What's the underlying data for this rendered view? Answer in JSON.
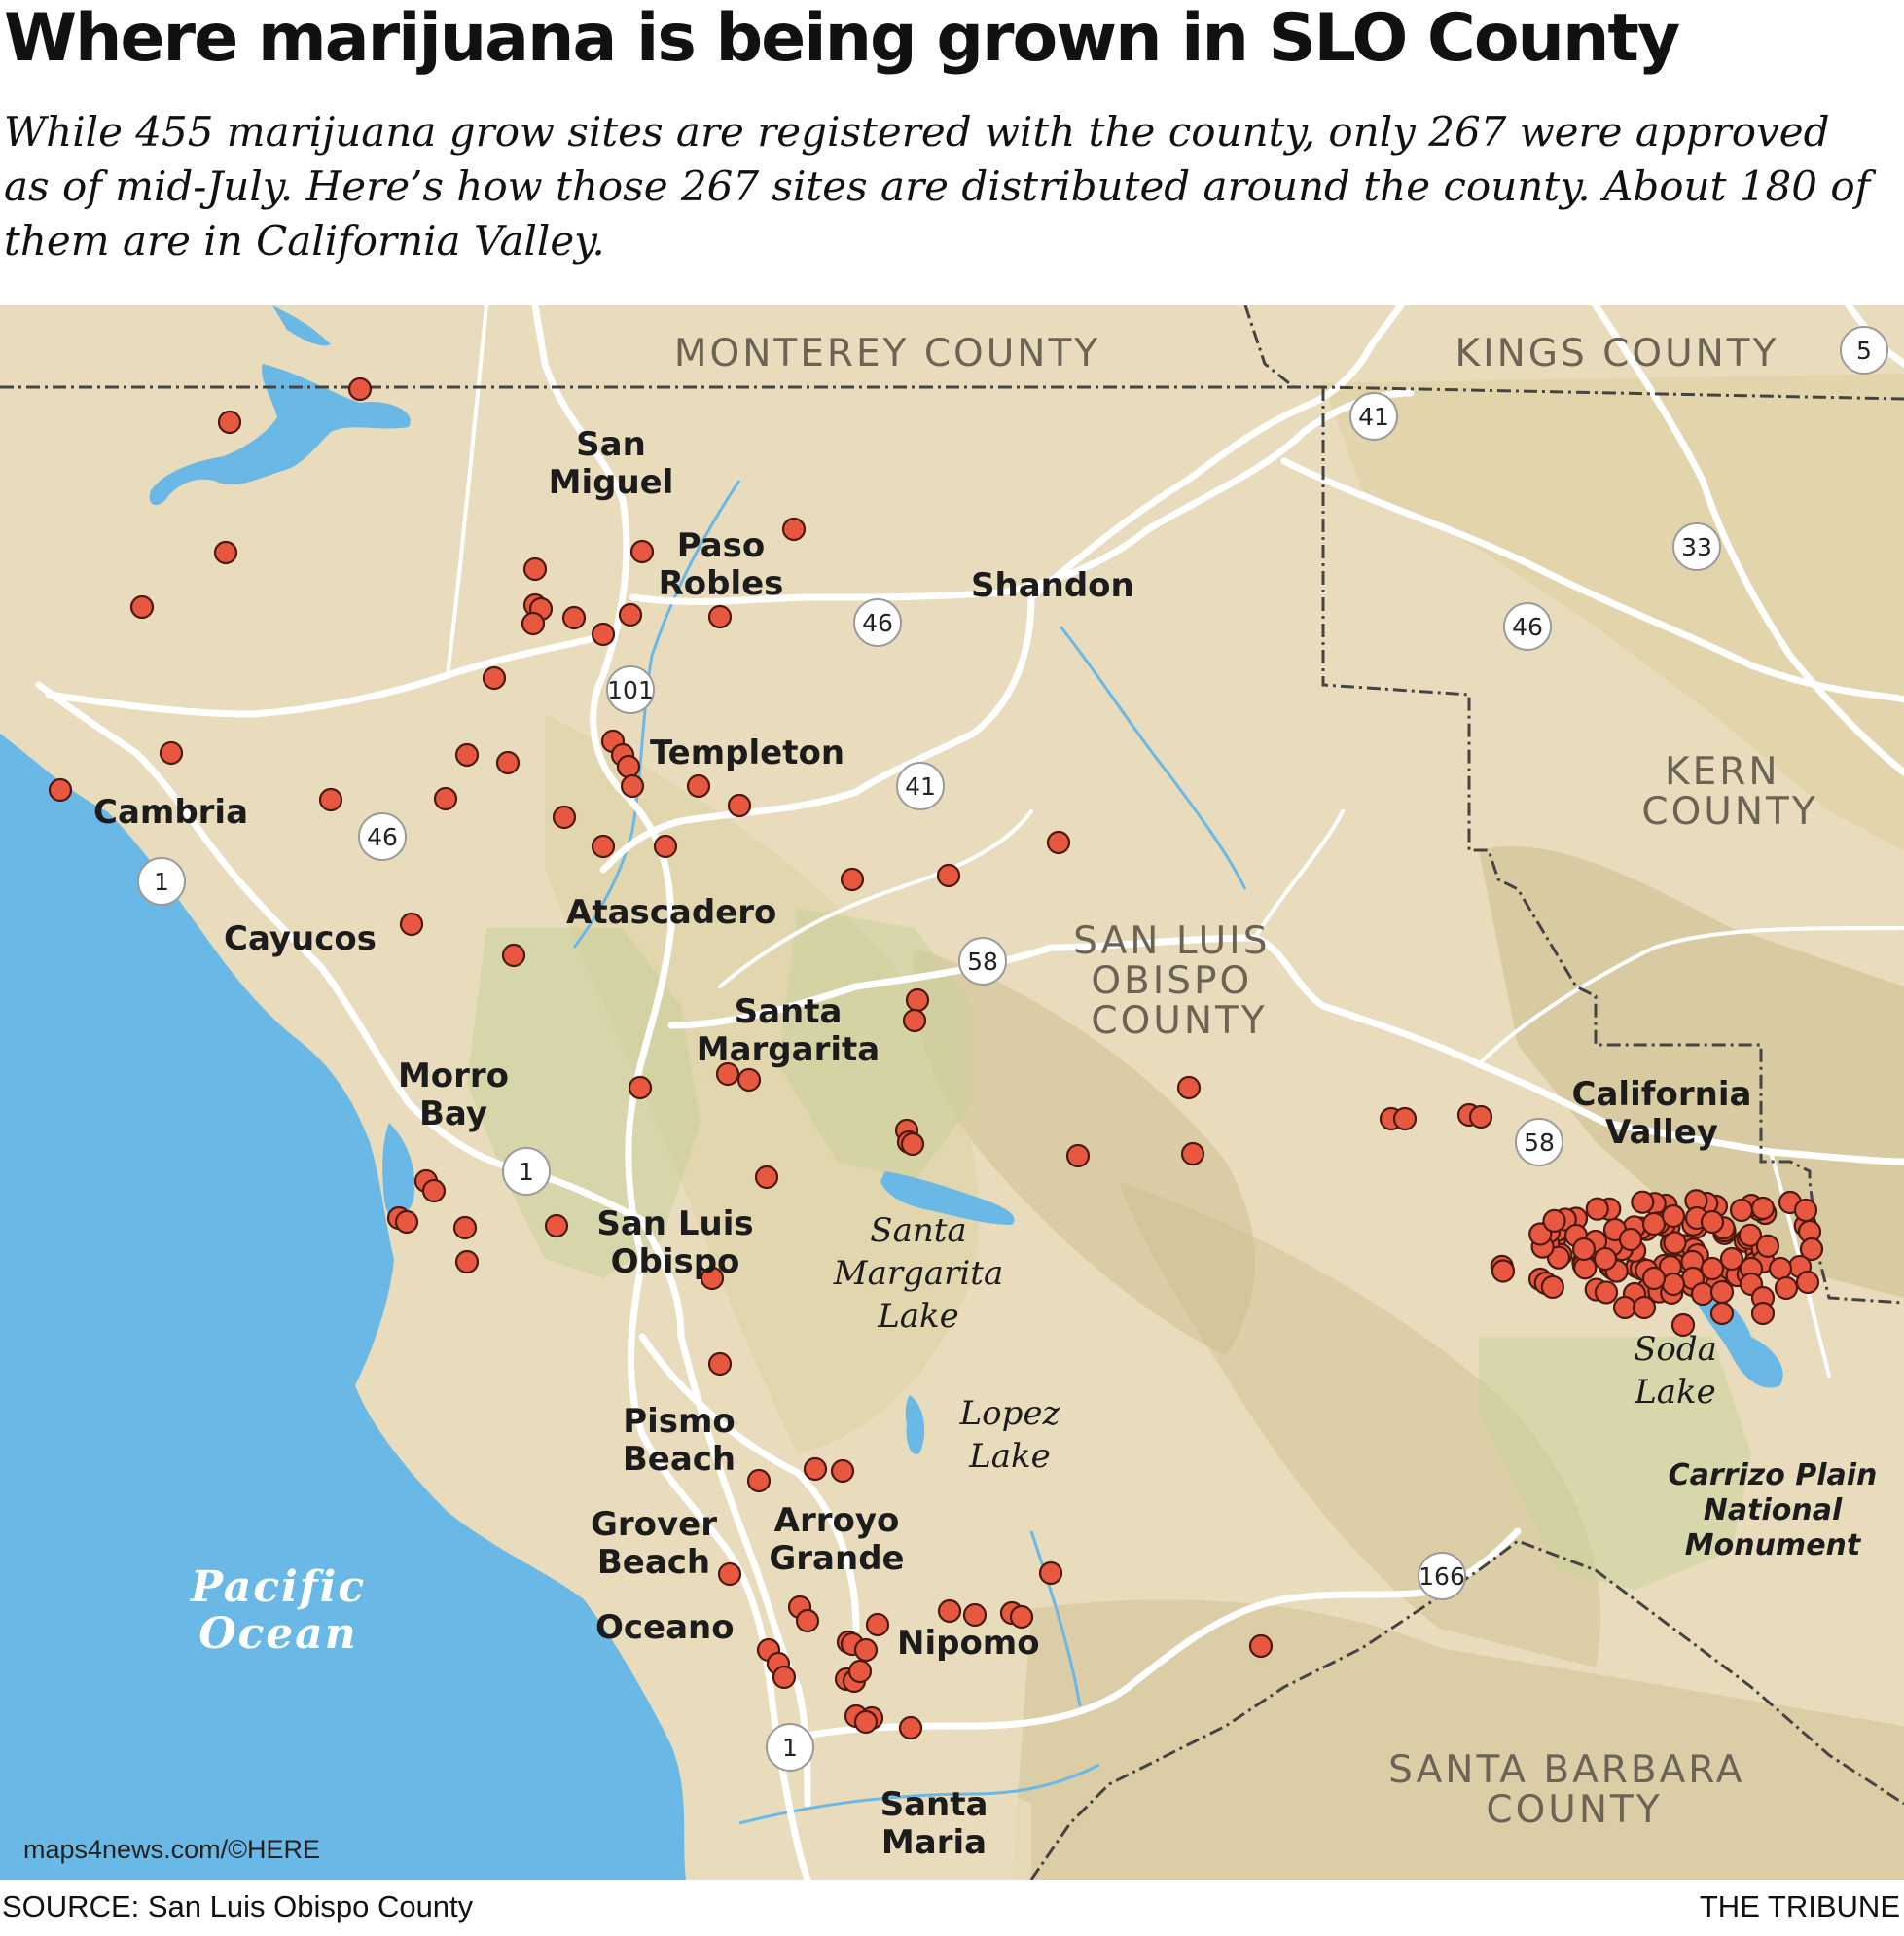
{
  "header": {
    "title": "Where marijuana is being grown in SLO County",
    "dek": "While 455 marijuana grow sites are registered with the county, only 267 were approved as of mid-July. Here’s how those 267 sites are distributed around the county. About 180 of them are in California Valley."
  },
  "map": {
    "attribution": "maps4news.com/©HERE",
    "colors": {
      "land": "#e9dcbc",
      "foothills": "#dccf9f",
      "mountains": "#cdbf8f",
      "parkland": "#c8cf9a",
      "water": "#6ab8e6",
      "roads": "#ffffff",
      "county_line": "#444444",
      "grow_site": "#e8573f",
      "grow_site_outline": "#4a1a10"
    },
    "counties": [
      {
        "id": "monterey",
        "label": "MONTEREY COUNTY"
      },
      {
        "id": "kings",
        "label": "KINGS COUNTY"
      },
      {
        "id": "kern",
        "label": [
          "KERN",
          "COUNTY"
        ]
      },
      {
        "id": "slo",
        "label": [
          "SAN LUIS",
          "OBISPO",
          "COUNTY"
        ]
      },
      {
        "id": "santa-barbara",
        "label": [
          "SANTA BARBARA",
          "COUNTY"
        ]
      }
    ],
    "places": [
      {
        "id": "san-miguel",
        "label": [
          "San",
          "Miguel"
        ]
      },
      {
        "id": "paso-robles",
        "label": [
          "Paso",
          "Robles"
        ]
      },
      {
        "id": "shandon",
        "label": [
          "Shandon"
        ]
      },
      {
        "id": "templeton",
        "label": [
          "Templeton"
        ]
      },
      {
        "id": "cambria",
        "label": [
          "Cambria"
        ]
      },
      {
        "id": "atascadero",
        "label": [
          "Atascadero"
        ]
      },
      {
        "id": "cayucos",
        "label": [
          "Cayucos"
        ]
      },
      {
        "id": "santa-margarita",
        "label": [
          "Santa",
          "Margarita"
        ]
      },
      {
        "id": "morro-bay",
        "label": [
          "Morro",
          "Bay"
        ]
      },
      {
        "id": "california-valley",
        "label": [
          "California",
          "Valley"
        ]
      },
      {
        "id": "san-luis-obispo",
        "label": [
          "San Luis",
          "Obispo"
        ]
      },
      {
        "id": "pismo-beach",
        "label": [
          "Pismo",
          "Beach"
        ]
      },
      {
        "id": "grover-beach",
        "label": [
          "Grover",
          "Beach"
        ]
      },
      {
        "id": "arroyo-grande",
        "label": [
          "Arroyo",
          "Grande"
        ]
      },
      {
        "id": "oceano",
        "label": [
          "Oceano"
        ]
      },
      {
        "id": "nipomo",
        "label": [
          "Nipomo"
        ]
      },
      {
        "id": "santa-maria",
        "label": [
          "Santa",
          "Maria"
        ]
      }
    ],
    "features": [
      {
        "id": "santa-margarita-lake",
        "label": [
          "Santa",
          "Margarita",
          "Lake"
        ]
      },
      {
        "id": "lopez-lake",
        "label": [
          "Lopez",
          "Lake"
        ]
      },
      {
        "id": "soda-lake",
        "label": [
          "Soda",
          "Lake"
        ]
      },
      {
        "id": "carrizo",
        "label": [
          "Carrizo Plain",
          "National",
          "Monument"
        ]
      },
      {
        "id": "pacific-ocean",
        "label": [
          "Pacific",
          "Ocean"
        ]
      }
    ],
    "highways": [
      "5",
      "41",
      "41",
      "33",
      "46",
      "46",
      "46",
      "101",
      "41",
      "1",
      "58",
      "58",
      "1",
      "166",
      "1"
    ]
  },
  "footer": {
    "source": "SOURCE: San Luis Obispo County",
    "credit": "THE TRIBUNE"
  }
}
